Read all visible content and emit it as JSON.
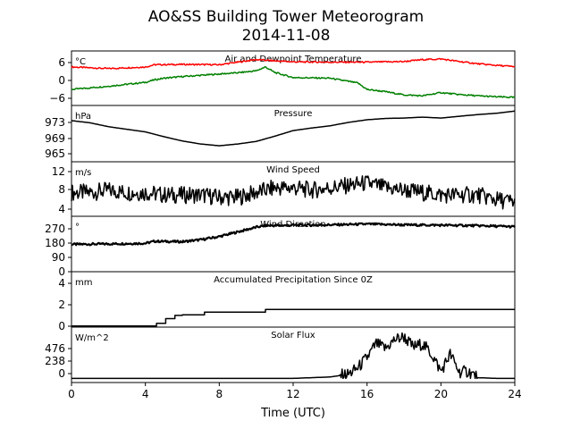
{
  "title": "AO&SS Building Tower Meteorogram",
  "subtitle": "2014-11-08",
  "xlabel": "Time (UTC)",
  "x_ticks": [
    "0",
    "4",
    "8",
    "12",
    "16",
    "20",
    "24"
  ],
  "chart_data": [
    {
      "type": "line",
      "panel_title": "Air and Dewpoint Temperature",
      "unit": "°C",
      "yticks": [
        "6",
        "0",
        "−6"
      ],
      "ylim": [
        -8.5,
        8.5
      ],
      "series": [
        {
          "color": "#ff0000",
          "x": [
            0,
            2,
            4,
            4.5,
            6,
            8,
            10,
            11,
            12,
            14,
            16,
            18,
            19,
            20,
            21,
            22,
            23,
            24
          ],
          "values": [
            3.5,
            3,
            3.5,
            4.2,
            4.3,
            4.2,
            5.8,
            5.4,
            5.1,
            5,
            5,
            5.2,
            5.8,
            6,
            5.2,
            4.5,
            4,
            3.6
          ]
        },
        {
          "color": "#008000",
          "x": [
            0,
            2,
            4,
            4.5,
            5,
            6,
            8,
            9,
            10,
            10.5,
            11,
            12,
            14,
            15.5,
            16,
            17,
            18,
            19,
            19.5,
            20,
            21,
            22,
            23,
            24
          ],
          "values": [
            -3.5,
            -2.5,
            -1.3,
            -0.5,
            0,
            0.5,
            1.3,
            1.7,
            2.3,
            3.5,
            1.8,
            0.2,
            0,
            -1.5,
            -3.5,
            -4.2,
            -5.2,
            -5.5,
            -5,
            -4.5,
            -5.1,
            -5.5,
            -5.8,
            -6
          ]
        }
      ]
    },
    {
      "type": "line",
      "panel_title": "Pressure",
      "unit": "hPa",
      "yticks": [
        "973",
        "969",
        "965"
      ],
      "ylim": [
        962.5,
        975.5
      ],
      "series": [
        {
          "color": "#000000",
          "x": [
            0,
            1,
            2,
            3,
            4,
            5,
            6,
            7,
            8,
            9,
            10,
            11,
            12,
            13,
            14,
            15,
            16,
            17,
            18,
            19,
            20,
            21,
            22,
            23,
            24
          ],
          "values": [
            972,
            971.5,
            970.6,
            970,
            969.4,
            968.3,
            967.3,
            966.6,
            966.2,
            966.6,
            967.2,
            968.4,
            969.7,
            970.3,
            970.8,
            971.6,
            972.2,
            972.5,
            972.6,
            972.8,
            972.6,
            973,
            973.4,
            973.7,
            974.2
          ]
        }
      ]
    },
    {
      "type": "line",
      "panel_title": "Wind Speed",
      "unit": "m/s",
      "yticks": [
        "12",
        "8",
        "4"
      ],
      "ylim": [
        2.5,
        14
      ],
      "series": [
        {
          "color": "#000000",
          "x": [
            0,
            1,
            2,
            3,
            4,
            5,
            6,
            7,
            8,
            9,
            10,
            11,
            12,
            13,
            14,
            15,
            16,
            17,
            18,
            19,
            20,
            21,
            22,
            23,
            24
          ],
          "values": [
            7.5,
            7.5,
            8,
            7.5,
            7.5,
            7,
            7,
            7,
            6.5,
            6.5,
            7.5,
            8.5,
            8.5,
            8,
            8.5,
            9,
            9.5,
            8.5,
            8,
            7.5,
            7,
            7,
            7,
            6,
            5.5
          ]
        }
      ]
    },
    {
      "type": "line",
      "panel_title": "Wind Direction",
      "unit": "°",
      "yticks": [
        "270",
        "180",
        "90",
        "0"
      ],
      "ylim": [
        0,
        355
      ],
      "series": [
        {
          "color": "#000000",
          "x": [
            0,
            2,
            4,
            4.5,
            6,
            7,
            8,
            9,
            10,
            10.5,
            12,
            14,
            16,
            18,
            20,
            22,
            24
          ],
          "values": [
            175,
            178,
            182,
            195,
            192,
            205,
            225,
            255,
            285,
            295,
            298,
            300,
            305,
            300,
            298,
            295,
            288
          ]
        }
      ]
    },
    {
      "type": "line",
      "panel_title": "Accumulated Precipitation Since 0Z",
      "unit": "mm",
      "yticks": [
        "4",
        "2",
        "0"
      ],
      "ylim": [
        -0.1,
        5.1
      ],
      "series": [
        {
          "color": "#000000",
          "x": [
            0,
            4.6,
            4.6,
            5.1,
            5.1,
            5.6,
            5.6,
            6,
            6,
            7.2,
            7.2,
            10.5,
            10.5,
            24
          ],
          "values": [
            0,
            0,
            0.25,
            0.25,
            0.7,
            0.7,
            1.0,
            1.0,
            1.05,
            1.05,
            1.3,
            1.3,
            1.55,
            1.55
          ]
        }
      ]
    },
    {
      "type": "line",
      "panel_title": "Solar Flux",
      "unit": "W/m^2",
      "yticks": [
        "476",
        "238",
        "0"
      ],
      "ylim": [
        -60,
        740
      ],
      "series": [
        {
          "color": "#000000",
          "x": [
            0,
            12,
            14,
            15,
            15.5,
            16,
            16.5,
            17,
            17.5,
            18,
            18.5,
            19,
            19.5,
            20,
            20.5,
            21,
            21.5,
            22,
            23,
            24
          ],
          "values": [
            0,
            0,
            20,
            60,
            150,
            300,
            500,
            430,
            560,
            600,
            450,
            500,
            350,
            100,
            350,
            90,
            100,
            10,
            0,
            0
          ]
        }
      ]
    }
  ]
}
